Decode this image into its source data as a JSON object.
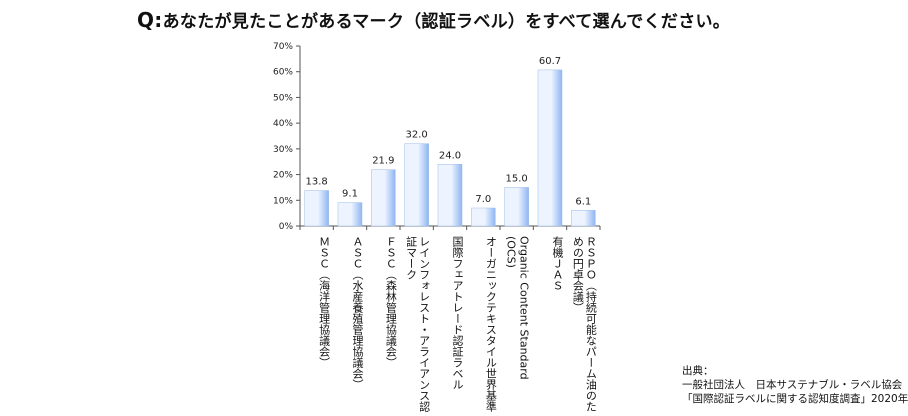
{
  "question": {
    "prefix": "Q:",
    "text": "あなたが見たことがあるマーク（認証ラベル）をすべて選んでください。"
  },
  "source": {
    "heading": "出典：",
    "line1": "一般社団法人　日本サステナブル・ラベル協会",
    "line2": "「国際認証ラベルに関する認知度調査」2020年"
  },
  "chart_data": {
    "type": "bar",
    "categories": [
      "ＭＳＣ（海洋管理協議会）",
      "ＡＳＣ（水産養殖管理協議会）",
      "ＦＳＣ（森林管理協議会）",
      "レインフォレスト・アライアンス認証マーク",
      "国際フェアトレード認証ラベル",
      "オーガニックテキスタイル世界基準",
      "Organic Content Standard (OCS)",
      "有機ＪＡＳ",
      "ＲＳＰＯ（持続可能なパーム油のための円卓会議）"
    ],
    "values": [
      13.8,
      9.1,
      21.9,
      32.0,
      24.0,
      7.0,
      15.0,
      60.7,
      6.1
    ],
    "value_labels": [
      "13.8",
      "9.1",
      "21.9",
      "32.0",
      "24.0",
      "7.0",
      "15.0",
      "60.7",
      "6.1"
    ],
    "y_ticks": [
      "0%",
      "10%",
      "20%",
      "30%",
      "40%",
      "50%",
      "60%",
      "70%"
    ],
    "ylim": [
      0,
      70
    ],
    "grid": false,
    "bar_color_light": "#eef4ff",
    "bar_color_dark": "#8fb6f2"
  }
}
